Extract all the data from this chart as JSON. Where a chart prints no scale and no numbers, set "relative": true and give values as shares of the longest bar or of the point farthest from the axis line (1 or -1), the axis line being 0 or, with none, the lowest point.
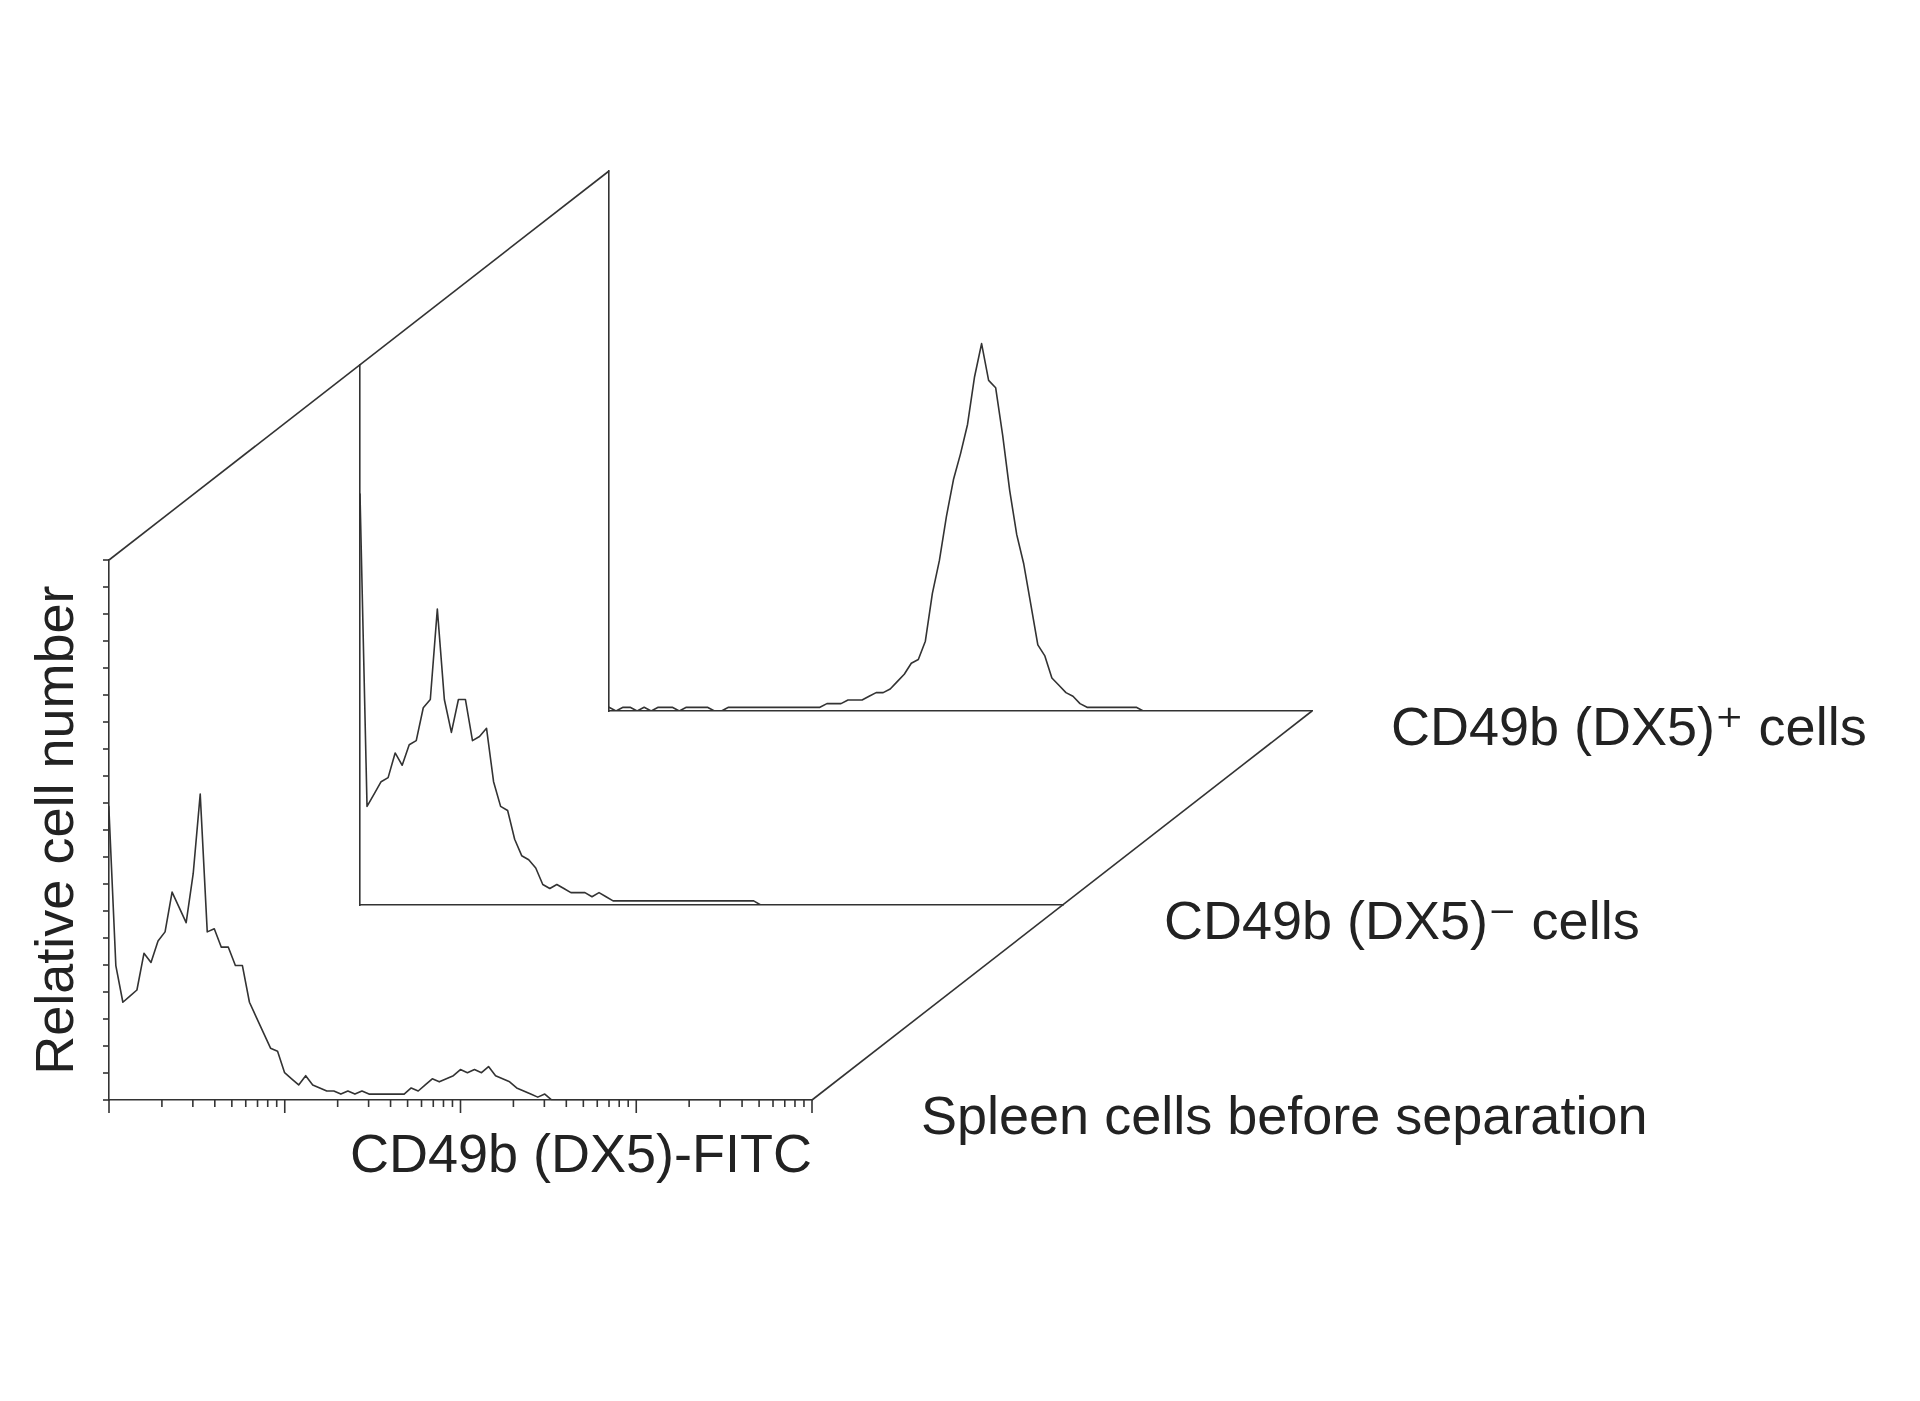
{
  "chart_data": [
    {
      "type": "line",
      "relative": true,
      "categories": [
        null,
        null,
        null,
        null,
        null,
        null,
        null,
        null,
        null,
        null,
        null,
        null,
        null,
        null,
        null,
        null,
        null,
        null,
        null,
        null,
        null,
        null,
        null,
        null,
        null,
        null,
        null,
        null,
        null,
        null,
        null,
        null,
        null,
        null,
        null,
        null,
        null,
        null,
        null,
        null,
        null,
        null,
        null,
        null,
        null,
        null,
        null,
        null,
        null,
        null,
        null,
        null,
        null,
        null,
        null,
        null,
        null,
        null,
        null,
        null,
        null,
        null,
        null,
        null,
        null,
        null,
        null,
        null,
        null,
        null,
        null,
        null,
        null,
        null,
        null,
        null,
        null,
        null,
        null,
        null,
        null,
        null,
        null,
        null,
        null,
        null,
        null,
        null,
        null,
        null,
        null,
        null,
        null,
        null,
        null,
        null,
        null,
        null,
        null,
        null,
        null
      ],
      "series": [
        {
          "name": "CD49b (DX5)⁺ cells",
          "color": "#333333",
          "values": [
            0.01,
            0,
            0.01,
            0.01,
            0,
            0.01,
            0,
            0.01,
            0.01,
            0.01,
            0,
            0.01,
            0.01,
            0.01,
            0.01,
            0,
            0,
            0.01,
            0.01,
            0.01,
            0.01,
            0.01,
            0.01,
            0.01,
            0.01,
            0.01,
            0.01,
            0.01,
            0.01,
            0.01,
            0.01,
            0.02,
            0.02,
            0.02,
            0.03,
            0.03,
            0.03,
            0.04,
            0.05,
            0.05,
            0.06,
            0.08,
            0.1,
            0.13,
            0.14,
            0.19,
            0.32,
            0.41,
            0.53,
            0.63,
            0.7,
            0.78,
            0.91,
            1.0,
            0.9,
            0.88,
            0.75,
            0.6,
            0.48,
            0.4,
            0.29,
            0.18,
            0.15,
            0.09,
            0.07,
            0.05,
            0.04,
            0.02,
            0.01,
            0.01,
            0.01,
            0.01,
            0.01,
            0.01,
            0.01,
            0.01,
            0,
            0,
            0,
            0,
            0,
            0,
            0,
            0,
            0,
            0,
            0,
            0,
            0,
            0,
            0,
            0,
            0,
            0,
            0,
            0,
            0,
            0,
            0,
            0,
            0
          ]
        }
      ]
    },
    {
      "type": "line",
      "relative": true,
      "categories": [
        null,
        null,
        null,
        null,
        null,
        null,
        null,
        null,
        null,
        null,
        null,
        null,
        null,
        null,
        null,
        null,
        null,
        null,
        null,
        null,
        null,
        null,
        null,
        null,
        null,
        null,
        null,
        null,
        null,
        null,
        null,
        null,
        null,
        null,
        null,
        null,
        null,
        null,
        null,
        null,
        null,
        null,
        null,
        null,
        null,
        null,
        null,
        null,
        null,
        null,
        null,
        null,
        null,
        null,
        null,
        null,
        null,
        null,
        null,
        null,
        null,
        null,
        null,
        null,
        null,
        null,
        null,
        null,
        null,
        null,
        null,
        null,
        null,
        null,
        null,
        null,
        null,
        null,
        null,
        null,
        null,
        null,
        null,
        null,
        null,
        null,
        null,
        null,
        null,
        null,
        null,
        null,
        null,
        null,
        null,
        null,
        null,
        null,
        null,
        null,
        null
      ],
      "series": [
        {
          "name": "CD49b (DX5)⁻ cells",
          "color": "#333333",
          "values": [
            1.0,
            0.24,
            0.27,
            0.3,
            0.31,
            0.37,
            0.34,
            0.39,
            0.4,
            0.48,
            0.5,
            0.72,
            0.5,
            0.42,
            0.5,
            0.5,
            0.4,
            0.41,
            0.43,
            0.3,
            0.24,
            0.23,
            0.16,
            0.12,
            0.11,
            0.09,
            0.05,
            0.04,
            0.05,
            0.04,
            0.03,
            0.03,
            0.03,
            0.02,
            0.03,
            0.02,
            0.01,
            0.01,
            0.01,
            0.01,
            0.01,
            0.01,
            0.01,
            0.01,
            0.01,
            0.01,
            0.01,
            0.01,
            0.01,
            0.01,
            0.01,
            0.01,
            0.01,
            0.01,
            0.01,
            0.01,
            0.01,
            0,
            0,
            0,
            0,
            0,
            0,
            0,
            0,
            0,
            0,
            0,
            0,
            0,
            0,
            0,
            0,
            0,
            0,
            0,
            0,
            0,
            0,
            0,
            0,
            0,
            0,
            0,
            0,
            0,
            0,
            0,
            0,
            0,
            0,
            0,
            0,
            0,
            0,
            0,
            0,
            0,
            0,
            0,
            0
          ]
        }
      ]
    },
    {
      "type": "line",
      "relative": true,
      "xlabel": "CD49b (DX5)-FITC",
      "ylabel": "Relative cell number",
      "categories": [
        null,
        null,
        null,
        null,
        null,
        null,
        null,
        null,
        null,
        null,
        null,
        null,
        null,
        null,
        null,
        null,
        null,
        null,
        null,
        null,
        null,
        null,
        null,
        null,
        null,
        null,
        null,
        null,
        null,
        null,
        null,
        null,
        null,
        null,
        null,
        null,
        null,
        null,
        null,
        null,
        null,
        null,
        null,
        null,
        null,
        null,
        null,
        null,
        null,
        null,
        null,
        null,
        null,
        null,
        null,
        null,
        null,
        null,
        null,
        null,
        null,
        null,
        null,
        null,
        null,
        null,
        null,
        null,
        null,
        null,
        null,
        null,
        null,
        null,
        null,
        null,
        null,
        null,
        null,
        null,
        null,
        null,
        null,
        null,
        null,
        null,
        null,
        null,
        null,
        null,
        null,
        null,
        null,
        null,
        null,
        null,
        null,
        null,
        null,
        null,
        null
      ],
      "series": [
        {
          "name": "Spleen cells before separation",
          "color": "#333333",
          "values": [
            0.96,
            0.44,
            0.32,
            0.34,
            0.36,
            0.48,
            0.45,
            0.52,
            0.55,
            0.68,
            0.63,
            0.58,
            0.74,
            1.0,
            0.55,
            0.56,
            0.5,
            0.5,
            0.44,
            0.44,
            0.32,
            0.27,
            0.22,
            0.17,
            0.16,
            0.09,
            0.07,
            0.05,
            0.08,
            0.05,
            0.04,
            0.03,
            0.03,
            0.02,
            0.03,
            0.02,
            0.03,
            0.02,
            0.02,
            0.02,
            0.02,
            0.02,
            0.02,
            0.04,
            0.03,
            0.05,
            0.07,
            0.06,
            0.07,
            0.08,
            0.1,
            0.09,
            0.1,
            0.09,
            0.11,
            0.08,
            0.07,
            0.06,
            0.04,
            0.03,
            0.02,
            0.01,
            0.02,
            0,
            0,
            0,
            0,
            0,
            0,
            0,
            0,
            0,
            0,
            0,
            0,
            0,
            0,
            0,
            0,
            0,
            0,
            0,
            0,
            0,
            0,
            0,
            0,
            0,
            0,
            0,
            0,
            0,
            0,
            0,
            0,
            0,
            0,
            0,
            0,
            0,
            0
          ]
        }
      ]
    }
  ]
}
